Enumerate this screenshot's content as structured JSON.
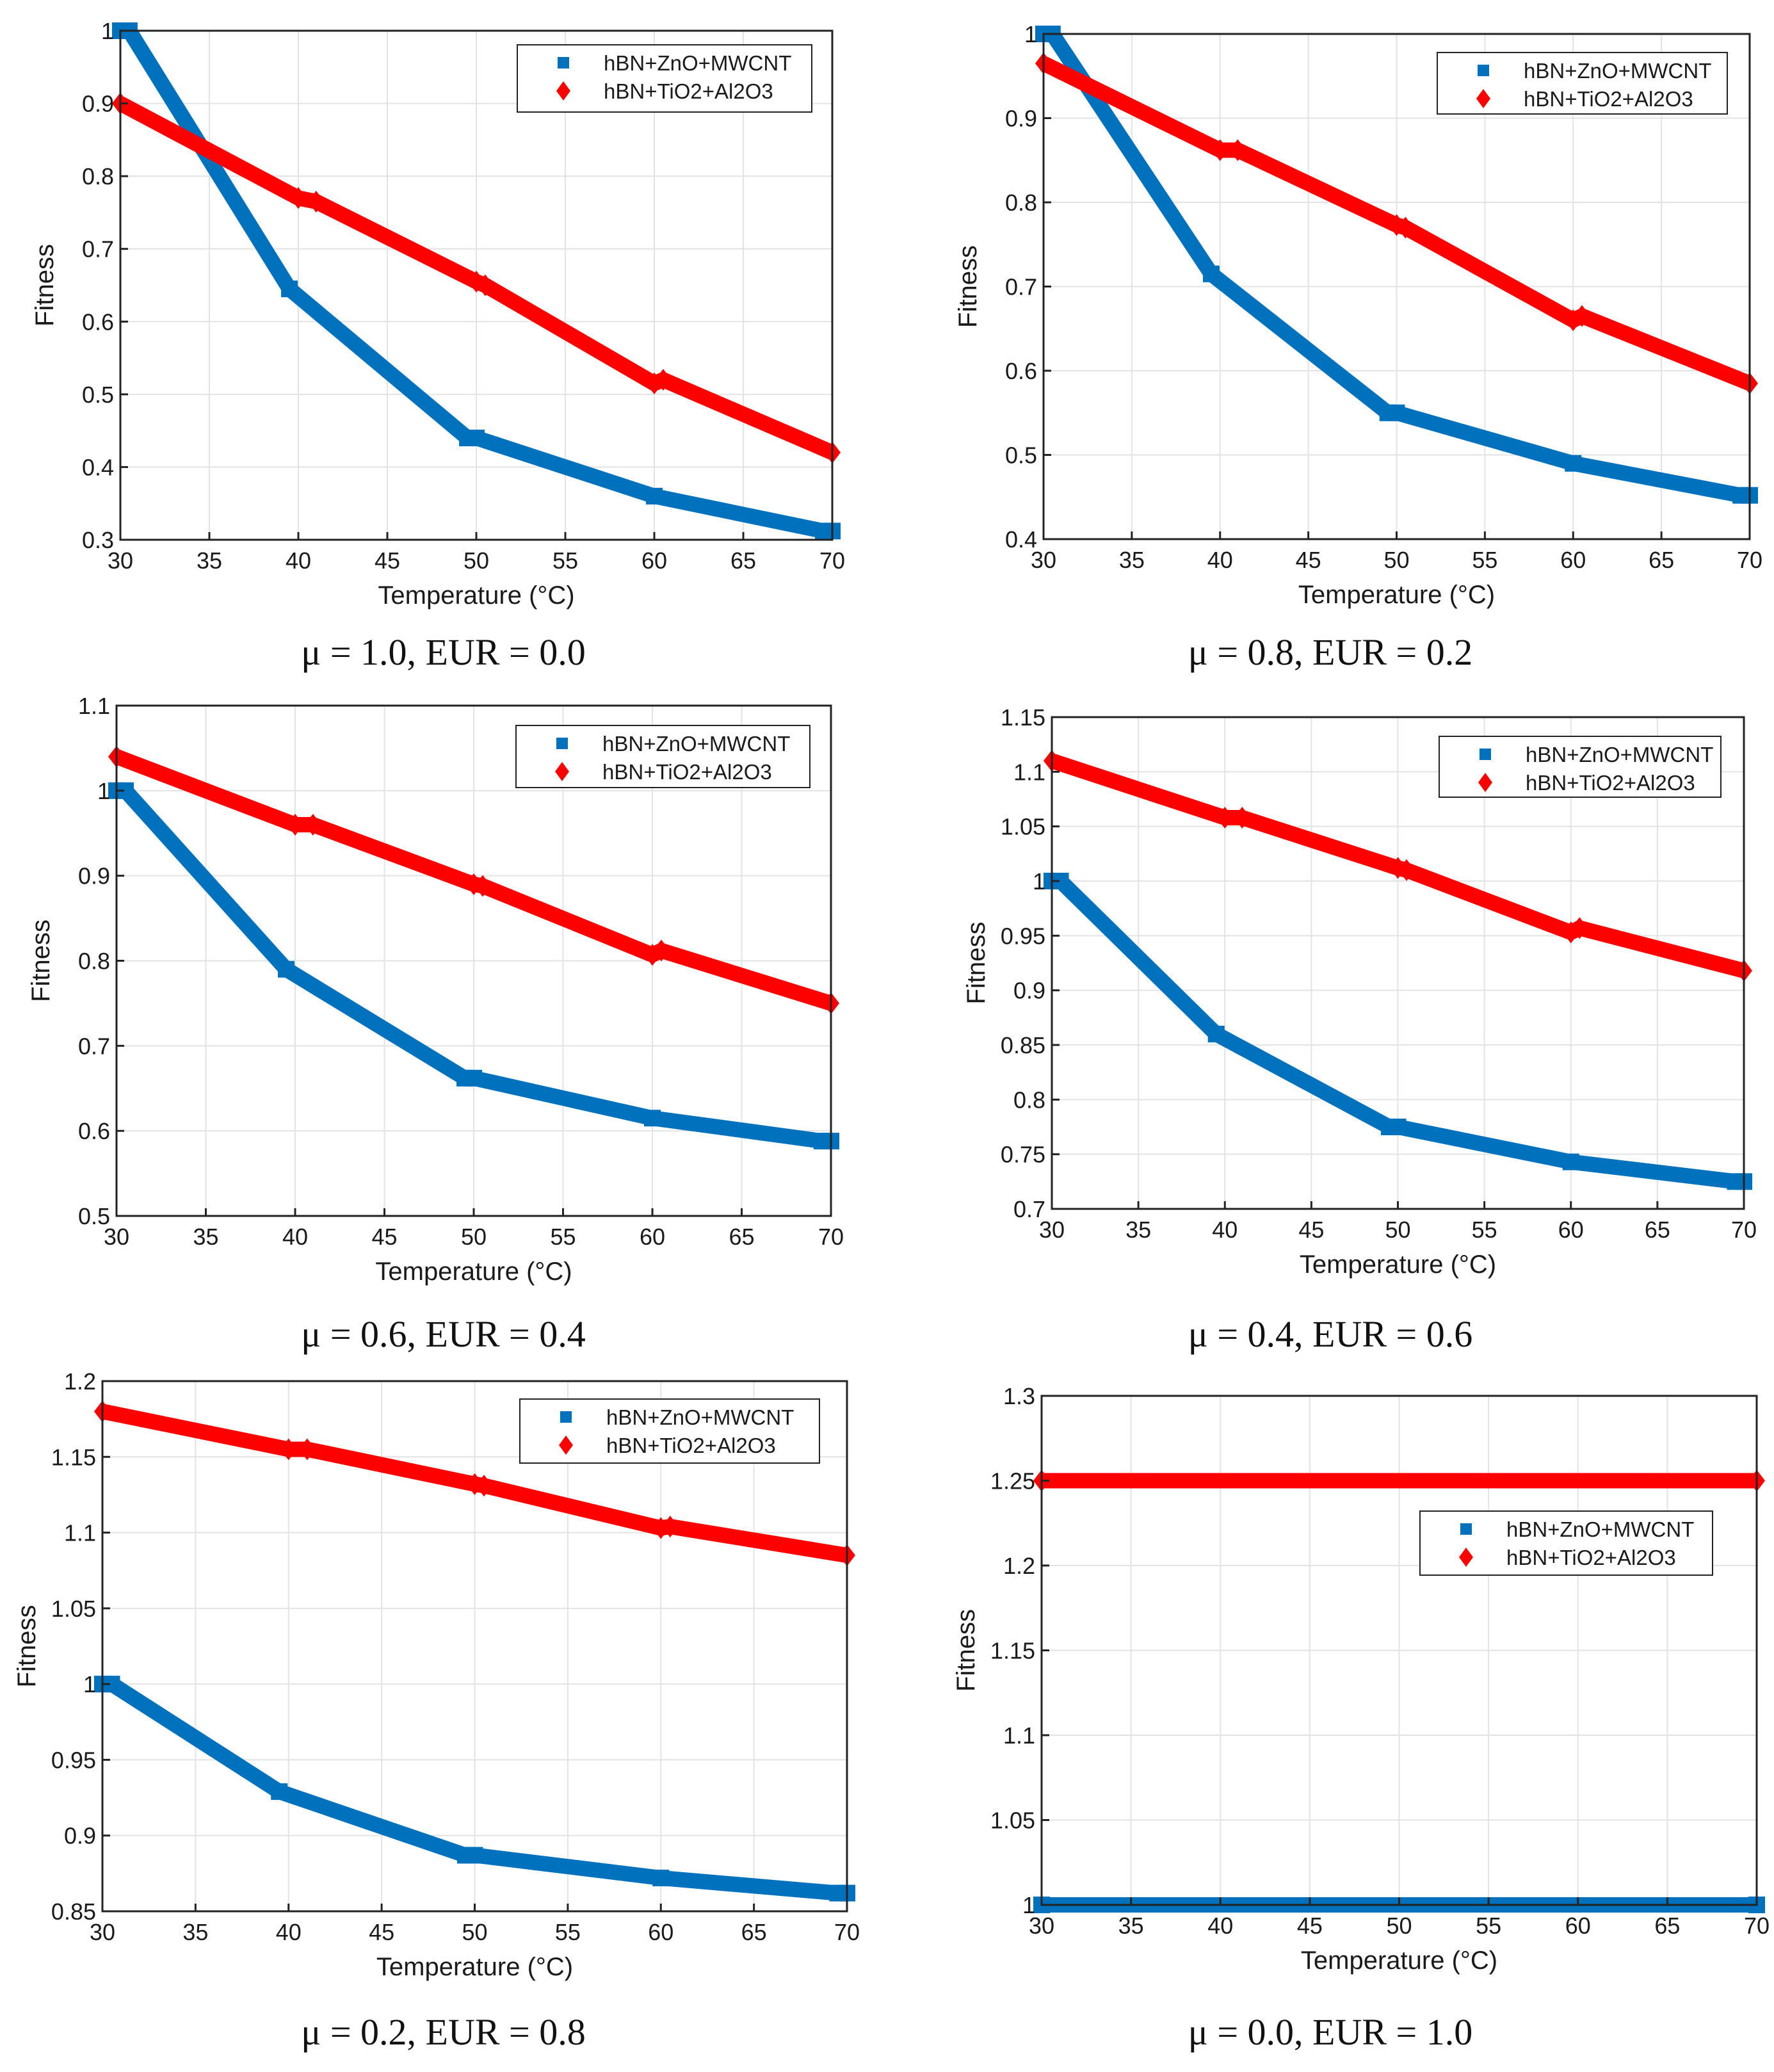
{
  "colors": {
    "series1": "#0072BD",
    "series2": "#FF0000",
    "grid": "#e3e3e3",
    "axis": "#222222"
  },
  "chart_data": [
    {
      "type": "line",
      "caption": "μ = 1.0, EUR = 0.0",
      "xlabel": "Temperature (°C)",
      "ylabel": "Fitness",
      "xlim": [
        30,
        70
      ],
      "ylim": [
        0.3,
        1
      ],
      "xticks": [
        "30",
        "35",
        "40",
        "45",
        "50",
        "55",
        "60",
        "65",
        "70"
      ],
      "yticks": [
        "0.3",
        "0.4",
        "0.5",
        "0.6",
        "0.7",
        "0.8",
        "0.9",
        "1"
      ],
      "legend": "top-right",
      "series": [
        {
          "name": "hBN+ZnO+MWCNT",
          "marker": "square",
          "x": [
            30,
            30.5,
            39.5,
            49.5,
            50,
            60,
            69.5,
            70
          ],
          "y": [
            1.0,
            1.0,
            0.645,
            0.44,
            0.44,
            0.36,
            0.312,
            0.312
          ]
        },
        {
          "name": "hBN+TiO2+Al2O3",
          "marker": "diamond",
          "x": [
            30,
            40,
            41,
            50,
            50.5,
            60,
            60.5,
            70
          ],
          "y": [
            0.9,
            0.77,
            0.765,
            0.655,
            0.65,
            0.515,
            0.52,
            0.42
          ]
        }
      ]
    },
    {
      "type": "line",
      "caption": "μ = 0.8, EUR = 0.2",
      "xlabel": "Temperature (°C)",
      "ylabel": "Fitness",
      "xlim": [
        30,
        70
      ],
      "ylim": [
        0.4,
        1
      ],
      "xticks": [
        "30",
        "35",
        "40",
        "45",
        "50",
        "55",
        "60",
        "65",
        "70"
      ],
      "yticks": [
        "0.4",
        "0.5",
        "0.6",
        "0.7",
        "0.8",
        "0.9",
        "1"
      ],
      "legend": "top-right",
      "series": [
        {
          "name": "hBN+ZnO+MWCNT",
          "marker": "square",
          "x": [
            30,
            30.5,
            39.5,
            49.5,
            50,
            60,
            69.5,
            70
          ],
          "y": [
            1.0,
            1.0,
            0.715,
            0.55,
            0.55,
            0.49,
            0.452,
            0.452
          ]
        },
        {
          "name": "hBN+TiO2+Al2O3",
          "marker": "diamond",
          "x": [
            30,
            40,
            41,
            50,
            50.5,
            60,
            60.5,
            70
          ],
          "y": [
            0.965,
            0.862,
            0.862,
            0.773,
            0.77,
            0.66,
            0.665,
            0.585
          ]
        }
      ]
    },
    {
      "type": "line",
      "caption": "μ = 0.6, EUR = 0.4",
      "xlabel": "Temperature (°C)",
      "ylabel": "Fitness",
      "xlim": [
        30,
        70
      ],
      "ylim": [
        0.5,
        1.1
      ],
      "xticks": [
        "30",
        "35",
        "40",
        "45",
        "50",
        "55",
        "60",
        "65",
        "70"
      ],
      "yticks": [
        "0.5",
        "0.6",
        "0.7",
        "0.8",
        "0.9",
        "1",
        "1.1"
      ],
      "legend": "top-right",
      "series": [
        {
          "name": "hBN+ZnO+MWCNT",
          "marker": "square",
          "x": [
            30,
            30.5,
            39.5,
            49.5,
            50,
            60,
            69.5,
            70
          ],
          "y": [
            1.0,
            1.0,
            0.79,
            0.662,
            0.662,
            0.615,
            0.588,
            0.588
          ]
        },
        {
          "name": "hBN+TiO2+Al2O3",
          "marker": "diamond",
          "x": [
            30,
            40,
            41,
            50,
            50.5,
            60,
            60.5,
            70
          ],
          "y": [
            1.04,
            0.96,
            0.96,
            0.89,
            0.888,
            0.807,
            0.812,
            0.75
          ]
        }
      ]
    },
    {
      "type": "line",
      "caption": "μ = 0.4, EUR = 0.6",
      "xlabel": "Temperature (°C)",
      "ylabel": "Fitness",
      "xlim": [
        30,
        70
      ],
      "ylim": [
        0.7,
        1.15
      ],
      "xticks": [
        "30",
        "35",
        "40",
        "45",
        "50",
        "55",
        "60",
        "65",
        "70"
      ],
      "yticks": [
        "0.7",
        "0.75",
        "0.8",
        "0.85",
        "0.9",
        "0.95",
        "1",
        "1.05",
        "1.1",
        "1.15"
      ],
      "legend": "top-right",
      "series": [
        {
          "name": "hBN+ZnO+MWCNT",
          "marker": "square",
          "x": [
            30,
            30.5,
            39.5,
            49.5,
            50,
            60,
            69.5,
            70
          ],
          "y": [
            1.0,
            1.0,
            0.86,
            0.775,
            0.775,
            0.743,
            0.725,
            0.725
          ]
        },
        {
          "name": "hBN+TiO2+Al2O3",
          "marker": "diamond",
          "x": [
            30,
            40,
            41,
            50,
            50.5,
            60,
            60.5,
            70
          ],
          "y": [
            1.11,
            1.058,
            1.058,
            1.012,
            1.01,
            0.953,
            0.957,
            0.918
          ]
        }
      ]
    },
    {
      "type": "line",
      "caption": "μ = 0.2, EUR = 0.8",
      "xlabel": "Temperature (°C)",
      "ylabel": "Fitness",
      "xlim": [
        30,
        70
      ],
      "ylim": [
        0.85,
        1.2
      ],
      "xticks": [
        "30",
        "35",
        "40",
        "45",
        "50",
        "55",
        "60",
        "65",
        "70"
      ],
      "yticks": [
        "0.85",
        "0.9",
        "0.95",
        "1",
        "1.05",
        "1.1",
        "1.15",
        "1.2"
      ],
      "legend": "top-right",
      "series": [
        {
          "name": "hBN+ZnO+MWCNT",
          "marker": "square",
          "x": [
            30,
            30.5,
            39.5,
            49.5,
            50,
            60,
            69.5,
            70
          ],
          "y": [
            1.0,
            1.0,
            0.929,
            0.887,
            0.887,
            0.872,
            0.862,
            0.862
          ]
        },
        {
          "name": "hBN+TiO2+Al2O3",
          "marker": "diamond",
          "x": [
            30,
            40,
            41,
            50,
            50.5,
            60,
            60.5,
            70
          ],
          "y": [
            1.18,
            1.155,
            1.155,
            1.132,
            1.131,
            1.103,
            1.104,
            1.085
          ]
        }
      ]
    },
    {
      "type": "line",
      "caption": "μ = 0.0, EUR = 1.0",
      "xlabel": "Temperature (°C)",
      "ylabel": "Fitness",
      "xlim": [
        30,
        70
      ],
      "ylim": [
        1,
        1.3
      ],
      "xticks": [
        "30",
        "35",
        "40",
        "45",
        "50",
        "55",
        "60",
        "65",
        "70"
      ],
      "yticks": [
        "1",
        "1.05",
        "1.1",
        "1.15",
        "1.2",
        "1.25",
        "1.3"
      ],
      "legend": "upper-middle-right",
      "series": [
        {
          "name": "hBN+ZnO+MWCNT",
          "marker": "square",
          "x": [
            30,
            70
          ],
          "y": [
            1.0,
            1.0
          ]
        },
        {
          "name": "hBN+TiO2+Al2O3",
          "marker": "diamond",
          "x": [
            30,
            70
          ],
          "y": [
            1.25,
            1.25
          ]
        }
      ]
    }
  ]
}
